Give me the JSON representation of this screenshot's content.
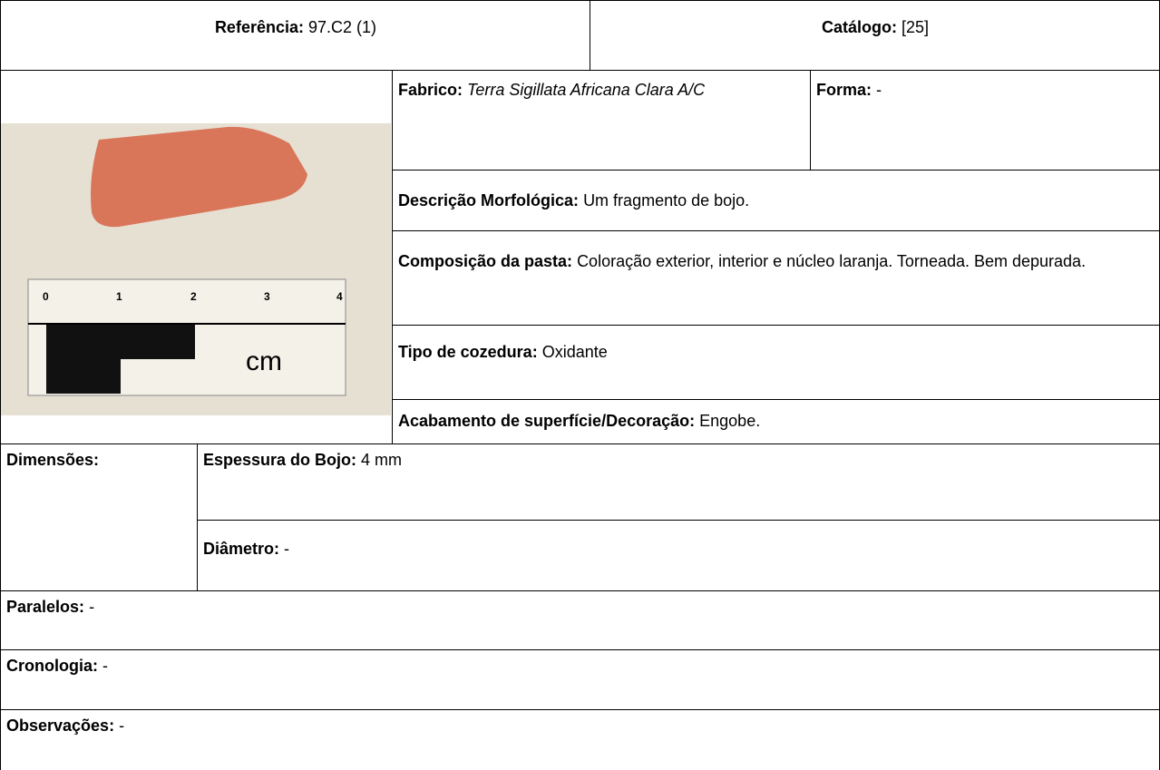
{
  "header": {
    "reference": {
      "label": "Referência:",
      "value": "97.C2 (1)"
    },
    "catalog": {
      "label": "Catálogo:",
      "value": "[25]"
    }
  },
  "image": {
    "scale_labels": [
      "0",
      "1",
      "2",
      "3",
      "4"
    ],
    "unit": "cm"
  },
  "fabrico": {
    "label": "Fabrico:",
    "value": "Terra Sigillata Africana Clara A/C"
  },
  "forma": {
    "label": "Forma:",
    "value": "-"
  },
  "descricao": {
    "label": "Descrição Morfológica:",
    "value": "Um fragmento de bojo."
  },
  "composicao": {
    "label": "Composição da pasta:",
    "value": "Coloração exterior, interior e núcleo laranja. Torneada. Bem depurada."
  },
  "cozedura": {
    "label": "Tipo de cozedura:",
    "value": "Oxidante"
  },
  "acabamento": {
    "label": "Acabamento de superfície/Decoração:",
    "value": "Engobe."
  },
  "dimensoes": {
    "label": "Dimensões:",
    "espessura": {
      "label": "Espessura do Bojo:",
      "value": "4 mm"
    },
    "diametro": {
      "label": "Diâmetro:",
      "value": "-"
    }
  },
  "paralelos": {
    "label": "Paralelos:",
    "value": "-"
  },
  "cronologia": {
    "label": "Cronologia:",
    "value": "-"
  },
  "observacoes": {
    "label": "Observações:",
    "value": "-"
  }
}
